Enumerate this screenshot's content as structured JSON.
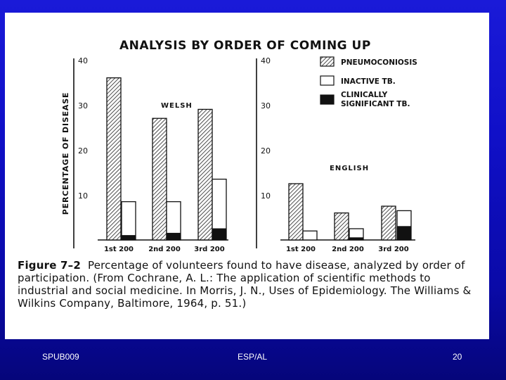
{
  "chart_data": {
    "type": "bar",
    "title": "ANALYSIS BY ORDER OF COMING UP",
    "ylabel": "PERCENTAGE OF DISEASE",
    "ylim": [
      0,
      40
    ],
    "yticks": [
      "40",
      "30",
      "20",
      "10"
    ],
    "legend": {
      "placement": "top-right",
      "entries": [
        "PNEUMOCONIOSIS",
        "INACTIVE TB.",
        "CLINICALLY SIGNIFICANT TB."
      ]
    },
    "series": [
      {
        "name": "PNEUMOCONIOSIS",
        "pattern": "hatched"
      },
      {
        "name": "INACTIVE TB.",
        "pattern": "white"
      },
      {
        "name": "CLINICALLY SIGNIFICANT TB.",
        "pattern": "black"
      }
    ],
    "panels": [
      {
        "label": "WELSH",
        "categories": [
          "1st 200",
          "2nd 200",
          "3rd 200"
        ],
        "values": {
          "PNEUMOCONIOSIS": [
            36,
            27,
            29
          ],
          "INACTIVE TB.": [
            8.5,
            8.5,
            13.5
          ],
          "CLINICALLY SIGNIFICANT TB.": [
            1,
            1.5,
            2.5
          ]
        }
      },
      {
        "label": "ENGLISH",
        "categories": [
          "1st 200",
          "2nd 200",
          "3rd 200"
        ],
        "values": {
          "PNEUMOCONIOSIS": [
            12.5,
            6,
            7.5
          ],
          "INACTIVE TB.": [
            2,
            2.5,
            6.5
          ],
          "CLINICALLY SIGNIFICANT TB.": [
            0,
            0.5,
            3
          ]
        }
      }
    ]
  },
  "caption": {
    "figure_label": "Figure 7–2",
    "text": "Percentage of volunteers found to have disease, analyzed by order of participation. (From Cochrane, A. L.: The application of scientific methods to industrial and social medicine. In Morris, J. N., Uses of Epidemiology. The Williams & Wilkins Company, Baltimore, 1964, p. 51.)"
  },
  "footer": {
    "left": "SPUB009",
    "center": "ESP/AL",
    "right": "20"
  }
}
